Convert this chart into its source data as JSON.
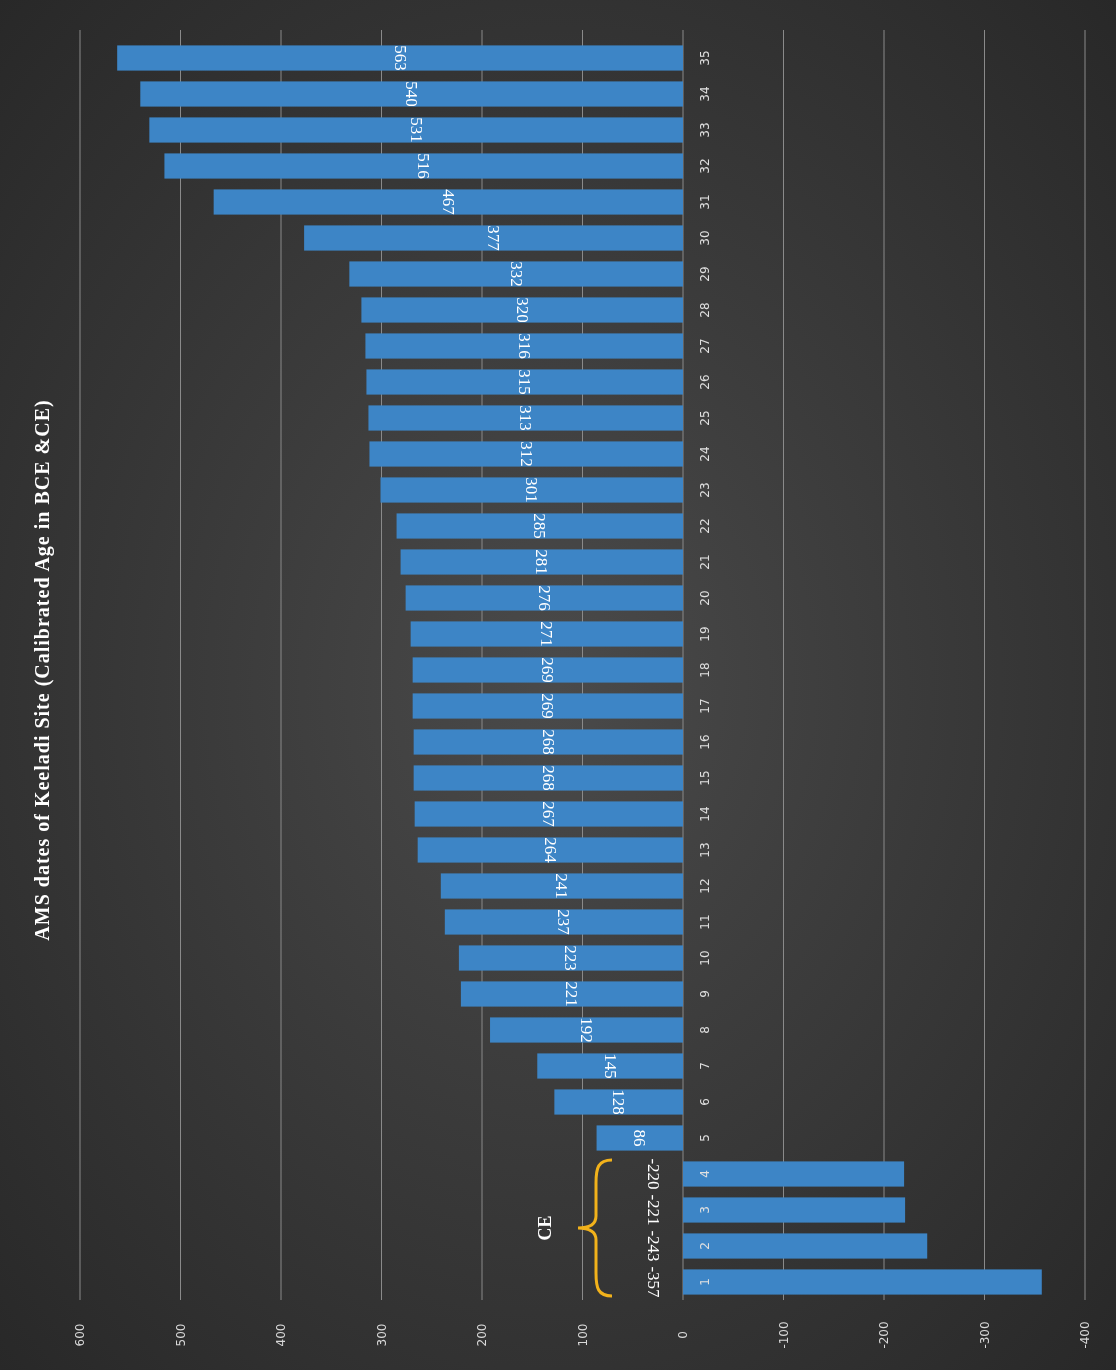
{
  "chart_data": {
    "type": "bar",
    "orientation": "horizontal",
    "title": "AMS dates of Keeladi Site (Calibrated Age in BCE &CE)",
    "categories": [
      "35",
      "34",
      "33",
      "32",
      "31",
      "30",
      "29",
      "28",
      "27",
      "26",
      "25",
      "24",
      "23",
      "22",
      "21",
      "20",
      "19",
      "18",
      "17",
      "16",
      "15",
      "14",
      "13",
      "12",
      "11",
      "10",
      "9",
      "8",
      "7",
      "6",
      "5",
      "4",
      "3",
      "2",
      "1"
    ],
    "values": [
      563,
      540,
      531,
      516,
      467,
      377,
      332,
      320,
      316,
      315,
      313,
      312,
      301,
      285,
      281,
      276,
      271,
      269,
      269,
      268,
      268,
      267,
      264,
      241,
      237,
      223,
      221,
      192,
      145,
      128,
      86,
      -220,
      -221,
      -243,
      -357
    ],
    "color": "#3d85c6",
    "xlim": [
      600,
      -400
    ],
    "xticks": [
      600,
      500,
      400,
      300,
      200,
      100,
      0,
      -100,
      -200,
      -300,
      -400
    ],
    "grid": "x",
    "data_labels": true,
    "annotations": [
      "CE"
    ]
  }
}
